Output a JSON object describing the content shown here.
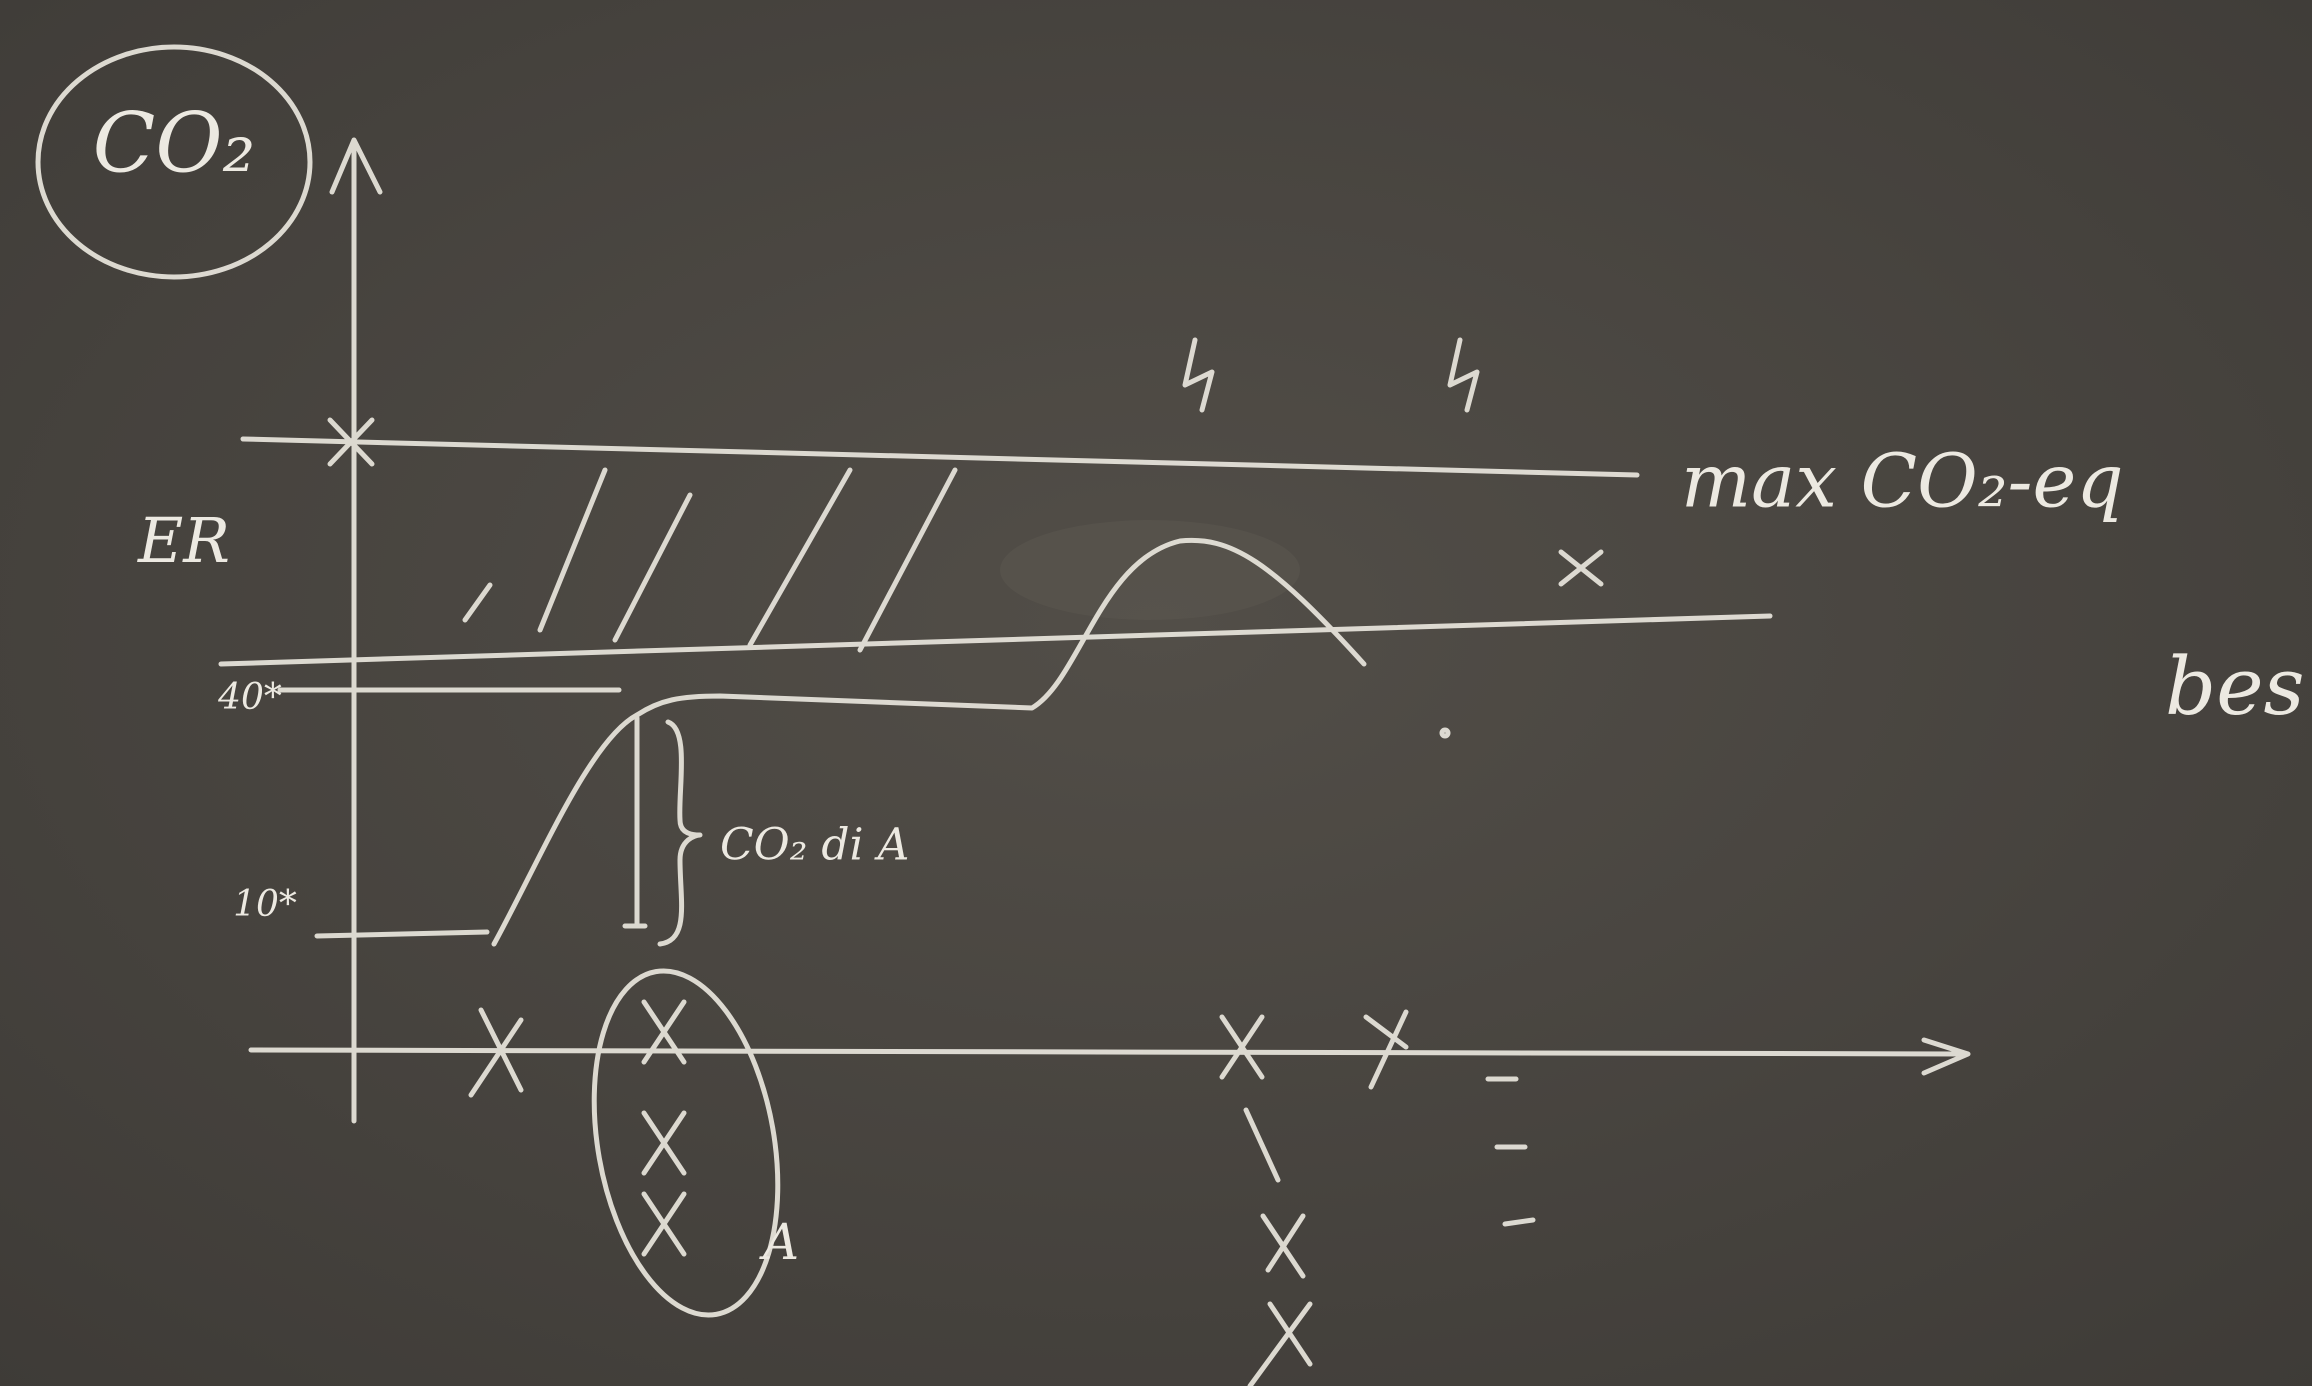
{
  "labels": {
    "circled": "CO₂",
    "y_label": "ER",
    "level_high": "40*",
    "level_low": "10*",
    "brace": "CO₂ di A",
    "max_line": "max CO₂-eq",
    "group": "A",
    "side": "bes"
  }
}
